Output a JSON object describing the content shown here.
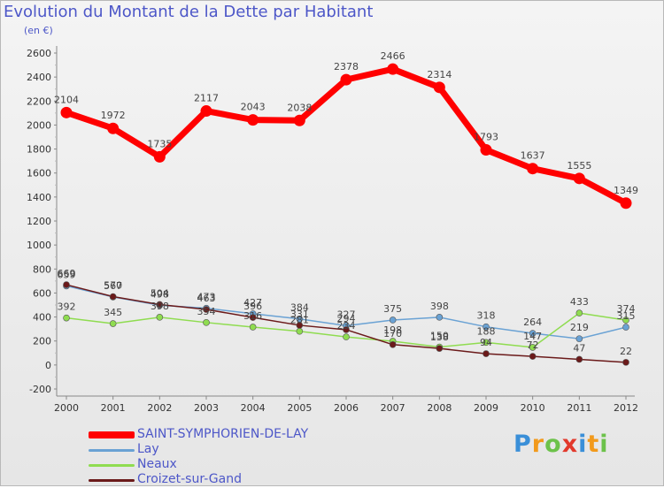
{
  "header": {
    "title": "Evolution du Montant de la Dette par Habitant",
    "subtitle": "(en €)"
  },
  "chart_data": {
    "type": "line",
    "title": "Evolution du Montant de la Dette par Habitant",
    "subtitle": "(en €)",
    "x": [
      "2000",
      "2001",
      "2002",
      "2003",
      "2004",
      "2005",
      "2006",
      "2007",
      "2008",
      "2009",
      "2010",
      "2011",
      "2012"
    ],
    "y_ticks": [
      "-200",
      "0",
      "200",
      "400",
      "600",
      "800",
      "1000",
      "1200",
      "1400",
      "1600",
      "1800",
      "2000",
      "2200",
      "2400",
      "2600"
    ],
    "ylim": [
      -200,
      2600
    ],
    "grid": false,
    "legend_position": "bottom-left",
    "series": [
      {
        "name": "SAINT-SYMPHORIEN-DE-LAY",
        "color": "#ff0000",
        "values": [
          2104,
          1972,
          1735,
          2117,
          2043,
          2038,
          2378,
          2466,
          2314,
          1793,
          1637,
          1555,
          1349
        ]
      },
      {
        "name": "Lay",
        "color": "#6aa2d4",
        "values": [
          659,
          567,
          498,
          473,
          427,
          384,
          327,
          375,
          398,
          318,
          264,
          219,
          315
        ]
      },
      {
        "name": "Neaux",
        "color": "#8fdc50",
        "values": [
          392,
          345,
          398,
          354,
          316,
          281,
          234,
          198,
          150,
          188,
          147,
          433,
          374
        ]
      },
      {
        "name": "Croizet-sur-Gand",
        "color": "#6b1a1a",
        "values": [
          669,
          570,
          504,
          463,
          396,
          331,
          294,
          170,
          138,
          94,
          72,
          47,
          22
        ]
      }
    ]
  },
  "logo": {
    "letters": [
      {
        "ch": "P",
        "color": "#3a8fd8"
      },
      {
        "ch": "r",
        "color": "#f29a1c"
      },
      {
        "ch": "o",
        "color": "#6cc24a"
      },
      {
        "ch": "x",
        "color": "#e2392c"
      },
      {
        "ch": "i",
        "color": "#3a8fd8"
      },
      {
        "ch": "t",
        "color": "#f29a1c"
      },
      {
        "ch": "i",
        "color": "#6cc24a"
      }
    ]
  }
}
